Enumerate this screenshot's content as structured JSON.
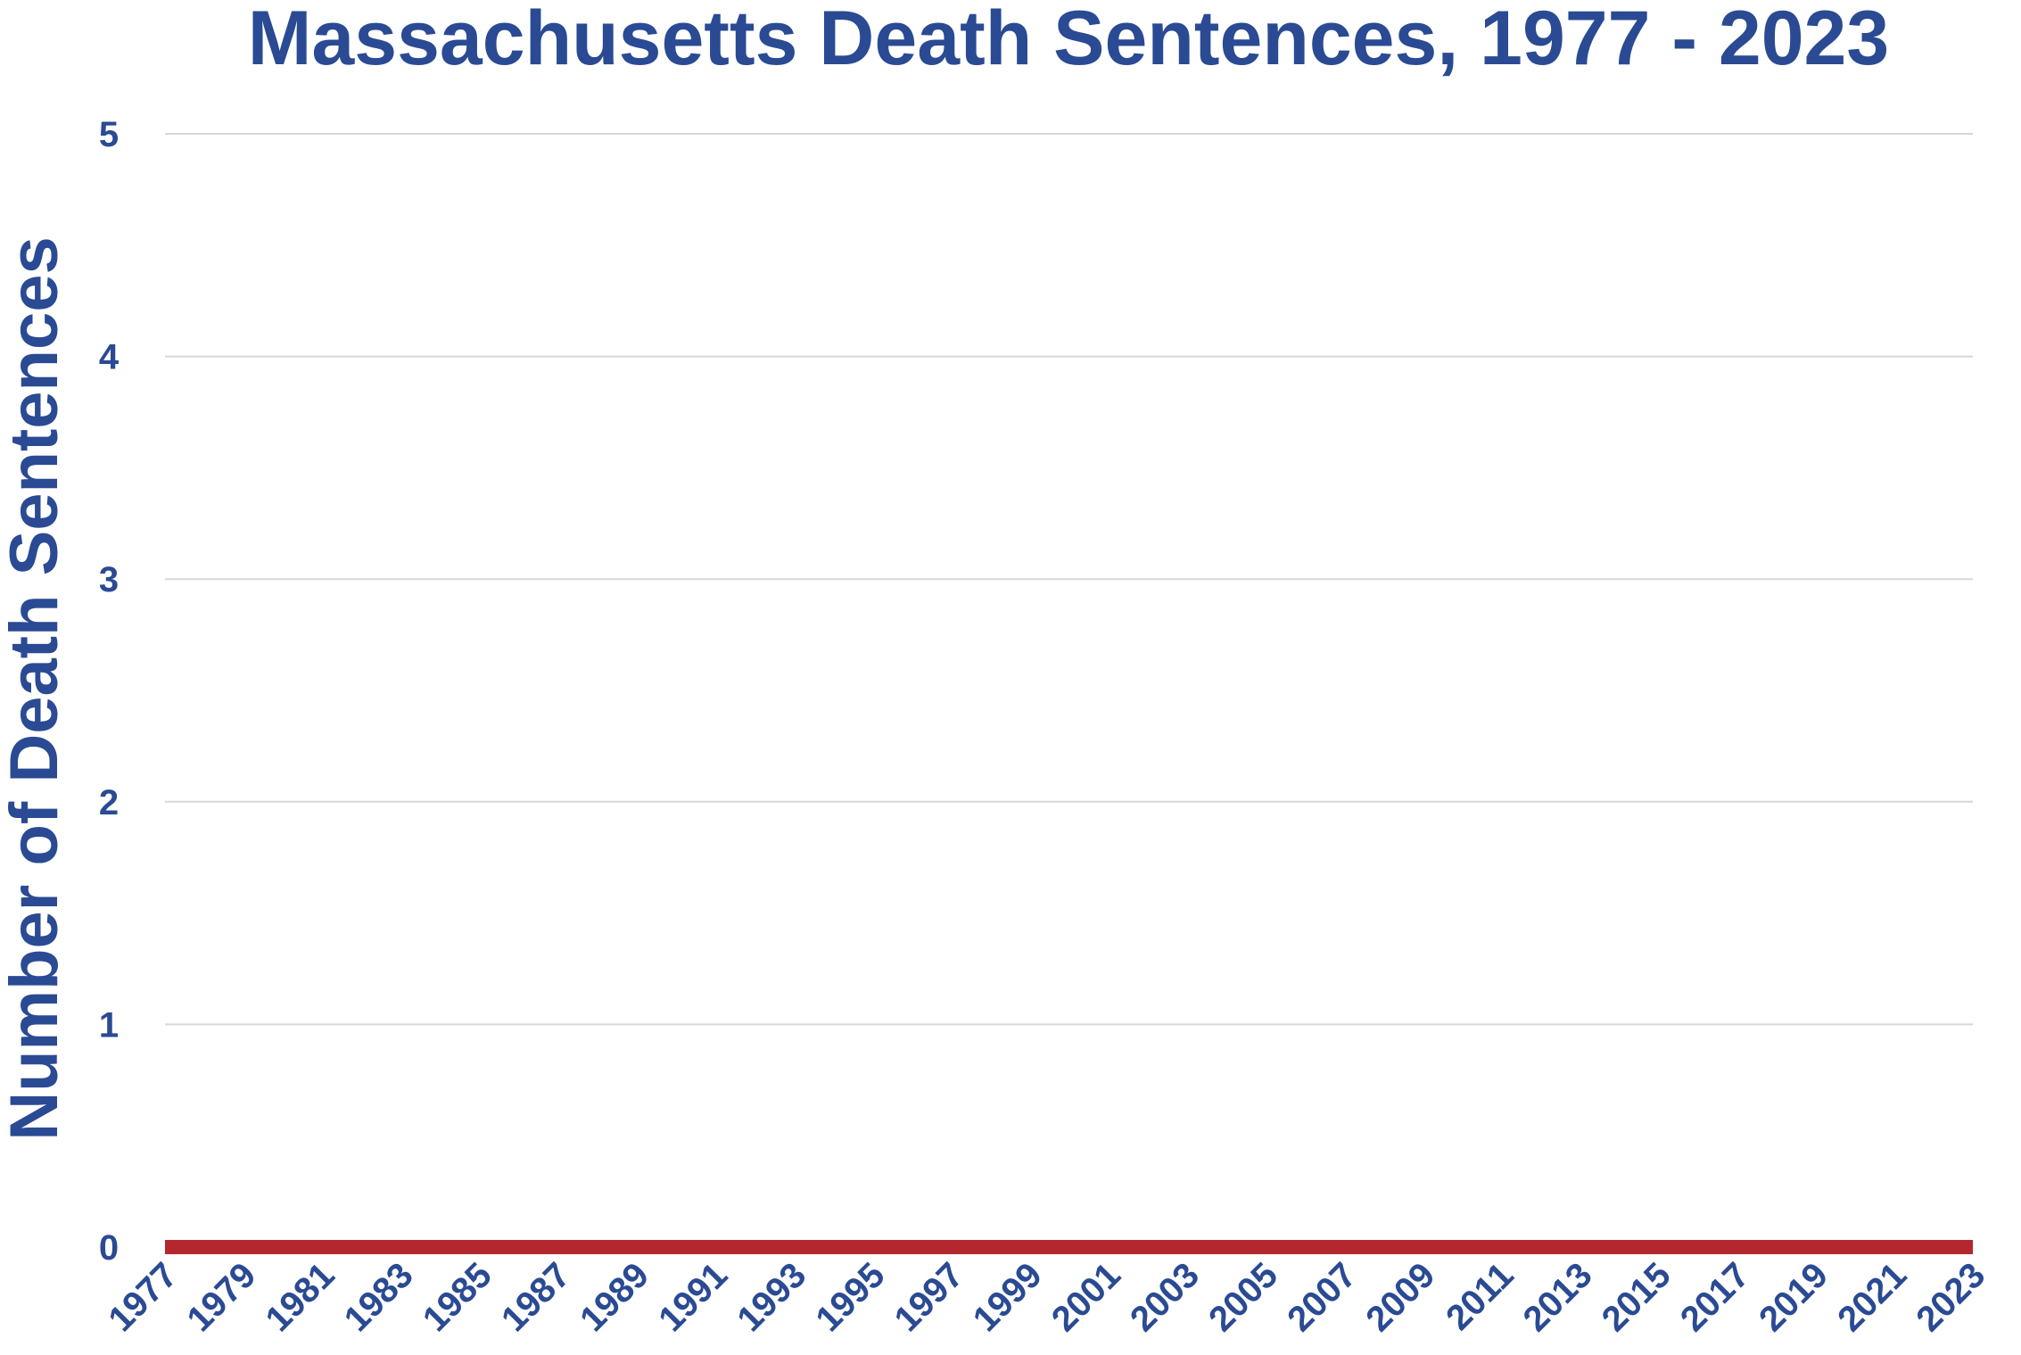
{
  "chart_data": {
    "type": "line",
    "title": "Massachusetts Death Sentences, 1977 - 2023",
    "xlabel": "",
    "ylabel": "Number of Death Sentences",
    "x": [
      1977,
      1978,
      1979,
      1980,
      1981,
      1982,
      1983,
      1984,
      1985,
      1986,
      1987,
      1988,
      1989,
      1990,
      1991,
      1992,
      1993,
      1994,
      1995,
      1996,
      1997,
      1998,
      1999,
      2000,
      2001,
      2002,
      2003,
      2004,
      2005,
      2006,
      2007,
      2008,
      2009,
      2010,
      2011,
      2012,
      2013,
      2014,
      2015,
      2016,
      2017,
      2018,
      2019,
      2020,
      2021,
      2022,
      2023
    ],
    "x_tick_labels": [
      "1977",
      "1979",
      "1981",
      "1983",
      "1985",
      "1987",
      "1989",
      "1991",
      "1993",
      "1995",
      "1997",
      "1999",
      "2001",
      "2003",
      "2005",
      "2007",
      "2009",
      "2011",
      "2013",
      "2015",
      "2017",
      "2019",
      "2021",
      "2023"
    ],
    "series": [
      {
        "values": [
          0,
          0,
          0,
          0,
          0,
          0,
          0,
          0,
          0,
          0,
          0,
          0,
          0,
          0,
          0,
          0,
          0,
          0,
          0,
          0,
          0,
          0,
          0,
          0,
          0,
          0,
          0,
          0,
          0,
          0,
          0,
          0,
          0,
          0,
          0,
          0,
          0,
          0,
          0,
          0,
          0,
          0,
          0,
          0,
          0,
          0,
          0
        ],
        "color": "#b3272d"
      }
    ],
    "ylim": [
      0,
      5
    ],
    "y_ticks": [
      "0",
      "1",
      "2",
      "3",
      "4",
      "5"
    ],
    "grid": true,
    "legend": "none",
    "colors": {
      "text": "#2a4a93",
      "grid": "#d7d7d7",
      "line": "#b3272d",
      "shadow": "#9a9a9a"
    }
  }
}
